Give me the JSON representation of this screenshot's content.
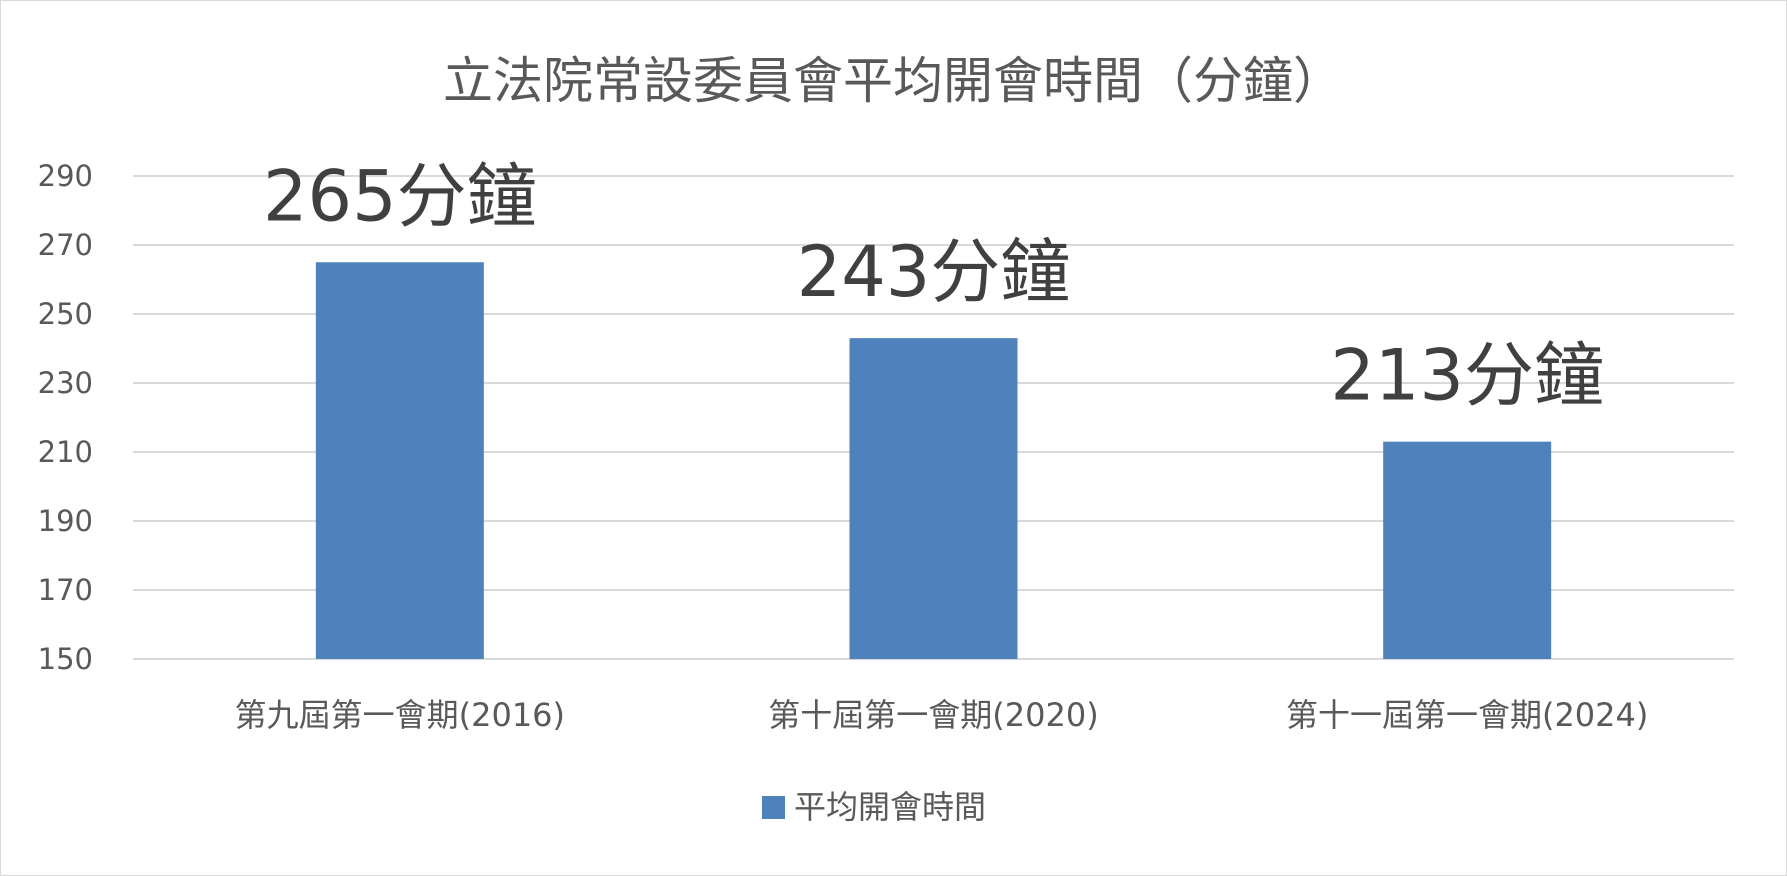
{
  "chart_data": {
    "type": "bar",
    "title": "立法院常設委員會平均開會時間（分鐘）",
    "categories": [
      "第九屆第一會期(2016)",
      "第十屆第一會期(2020)",
      "第十一屆第一會期(2024)"
    ],
    "series": [
      {
        "name": "平均開會時間",
        "values": [
          265,
          243,
          213
        ],
        "data_labels": [
          "265分鐘",
          "243分鐘",
          "213分鐘"
        ],
        "color": "#4f81bd"
      }
    ],
    "ylim": [
      150,
      290
    ],
    "yticks": [
      150,
      170,
      190,
      210,
      230,
      250,
      270,
      290
    ],
    "ytick_labels": [
      "150",
      "170",
      "190",
      "210",
      "230",
      "250",
      "270",
      "290"
    ],
    "xlabel": "",
    "ylabel": "",
    "grid": true,
    "legend_position": "bottom"
  }
}
